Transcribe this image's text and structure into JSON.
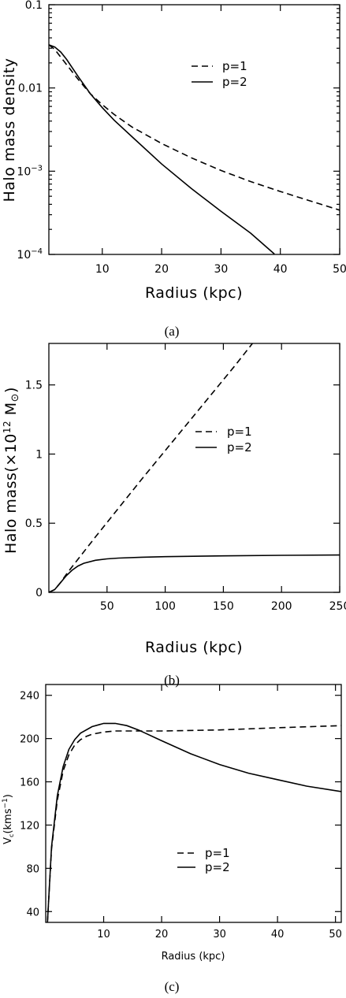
{
  "chart_data": [
    {
      "type": "line",
      "panel": "(a)",
      "xlabel": "Radius (kpc)",
      "ylabel": "Halo mass density",
      "y_scale": "log",
      "xlim": [
        1,
        50
      ],
      "ylim": [
        0.0001,
        0.1
      ],
      "x_ticks": [
        10,
        20,
        30,
        40,
        50
      ],
      "y_ticks": [
        {
          "value": 0.0001,
          "base": "10",
          "exp": "−4"
        },
        {
          "value": 0.001,
          "base": "10",
          "exp": "−3"
        },
        {
          "value": 0.01,
          "text": "0.01"
        },
        {
          "value": 0.1,
          "text": "0.1"
        }
      ],
      "legend": "upper-right",
      "series": [
        {
          "name": "p=1",
          "style": "dashed",
          "x": [
            1,
            2,
            4,
            6,
            8,
            10,
            12,
            15,
            20,
            25,
            30,
            35,
            40,
            45,
            50
          ],
          "y": [
            0.033,
            0.029,
            0.019,
            0.0125,
            0.0085,
            0.0063,
            0.0048,
            0.0034,
            0.00215,
            0.00145,
            0.00102,
            0.00075,
            0.00057,
            0.00044,
            0.00034
          ]
        },
        {
          "name": "p=2",
          "style": "solid",
          "x": [
            1,
            2,
            3,
            4,
            6,
            8,
            10,
            12,
            15,
            20,
            25,
            30,
            35,
            39
          ],
          "y": [
            0.033,
            0.031,
            0.027,
            0.022,
            0.0135,
            0.0085,
            0.0058,
            0.0041,
            0.0026,
            0.00122,
            0.00062,
            0.00033,
            0.00018,
            0.000101
          ]
        }
      ]
    },
    {
      "type": "line",
      "panel": "(b)",
      "xlabel": "Radius (kpc)",
      "ylabel": "Halo mass(×10",
      "ylabel_sup": "12",
      "ylabel_unit": " M",
      "ylabel_sun": "⊙",
      "ylabel_close": ")",
      "xlim": [
        0,
        250
      ],
      "ylim": [
        0,
        1.8
      ],
      "x_ticks": [
        50,
        100,
        150,
        200,
        250
      ],
      "y_ticks": [
        0,
        0.5,
        1,
        1.5
      ],
      "legend": "center-right",
      "series": [
        {
          "name": "p=1",
          "style": "dashed",
          "x": [
            0,
            5,
            10,
            15,
            20,
            40,
            80,
            120,
            160,
            175
          ],
          "y": [
            0,
            0.02,
            0.07,
            0.13,
            0.185,
            0.4,
            0.82,
            1.23,
            1.64,
            1.8
          ]
        },
        {
          "name": "p=2",
          "style": "solid",
          "x": [
            0,
            5,
            10,
            15,
            20,
            25,
            30,
            40,
            50,
            60,
            80,
            100,
            150,
            200,
            250
          ],
          "y": [
            0,
            0.02,
            0.07,
            0.12,
            0.16,
            0.19,
            0.21,
            0.232,
            0.242,
            0.248,
            0.254,
            0.258,
            0.264,
            0.268,
            0.27
          ]
        }
      ]
    },
    {
      "type": "line",
      "panel": "(c)",
      "xlabel": "Radius (kpc)",
      "ylabel": "V",
      "ylabel_sub": "c",
      "ylabel_rest": "(kms",
      "ylabel_sup": "−1",
      "ylabel_close": ")",
      "xlim": [
        0,
        51
      ],
      "ylim": [
        30,
        250
      ],
      "x_ticks": [
        10,
        20,
        30,
        40,
        50
      ],
      "y_ticks": [
        40,
        80,
        120,
        160,
        200,
        240
      ],
      "legend": "center-right",
      "series": [
        {
          "name": "p=1",
          "style": "dashed",
          "x": [
            0.3,
            1,
            2,
            3,
            4,
            5,
            6,
            7,
            8,
            10,
            12,
            15,
            20,
            30,
            40,
            51
          ],
          "y": [
            30,
            98,
            143,
            170,
            185,
            194,
            199,
            202,
            204,
            206,
            207,
            207,
            207,
            208,
            210,
            212
          ]
        },
        {
          "name": "p=2",
          "style": "solid",
          "x": [
            0.3,
            1,
            2,
            3,
            4,
            5,
            6,
            8,
            10,
            12,
            14,
            16,
            20,
            25,
            30,
            35,
            40,
            45,
            51
          ],
          "y": [
            30,
            100,
            147,
            174,
            190,
            199,
            205,
            211,
            214,
            214,
            212,
            208,
            198,
            186,
            176,
            168,
            162,
            156,
            151
          ]
        }
      ]
    }
  ],
  "captions": [
    "(a)",
    "(b)",
    "(c)"
  ]
}
